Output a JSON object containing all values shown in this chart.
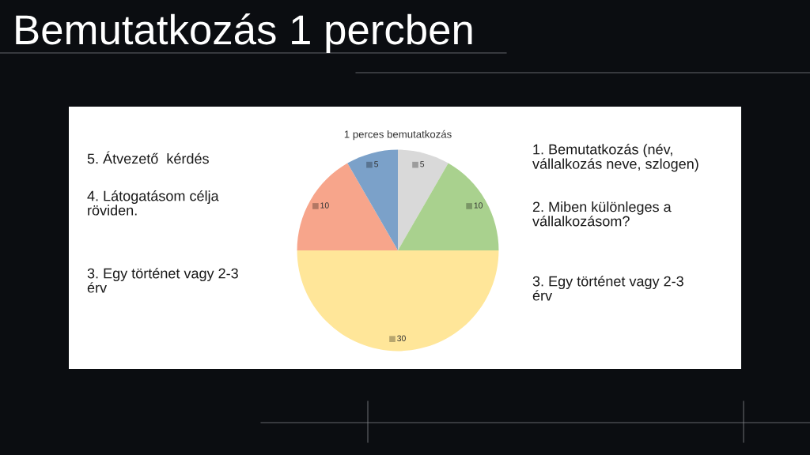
{
  "chart_data": {
    "type": "pie",
    "title": "Bemutatkozás 1 percben",
    "subtitle": "1 perces bemutatkozás",
    "categories": [
      null,
      null,
      null,
      null,
      null
    ],
    "values": [
      5,
      10,
      30,
      10,
      5
    ],
    "colors": [
      "#d9d9d9",
      "#a9d18e",
      "#ffe699",
      "#f7a58b",
      "#7ba1c9"
    ],
    "data_labels": true,
    "annotations": [
      "5. Átvezető  kérdés",
      "4. Látogatásom célja\nröviden.",
      "3. Egy történet vagy 2-3\nérv",
      "1. Bemutatkozás (név,\nvállalkozás neve, szlogen)",
      "2. Miben különleges a\nvállalkozásom?",
      "3. Egy történet vagy 2-3\nérv"
    ]
  }
}
